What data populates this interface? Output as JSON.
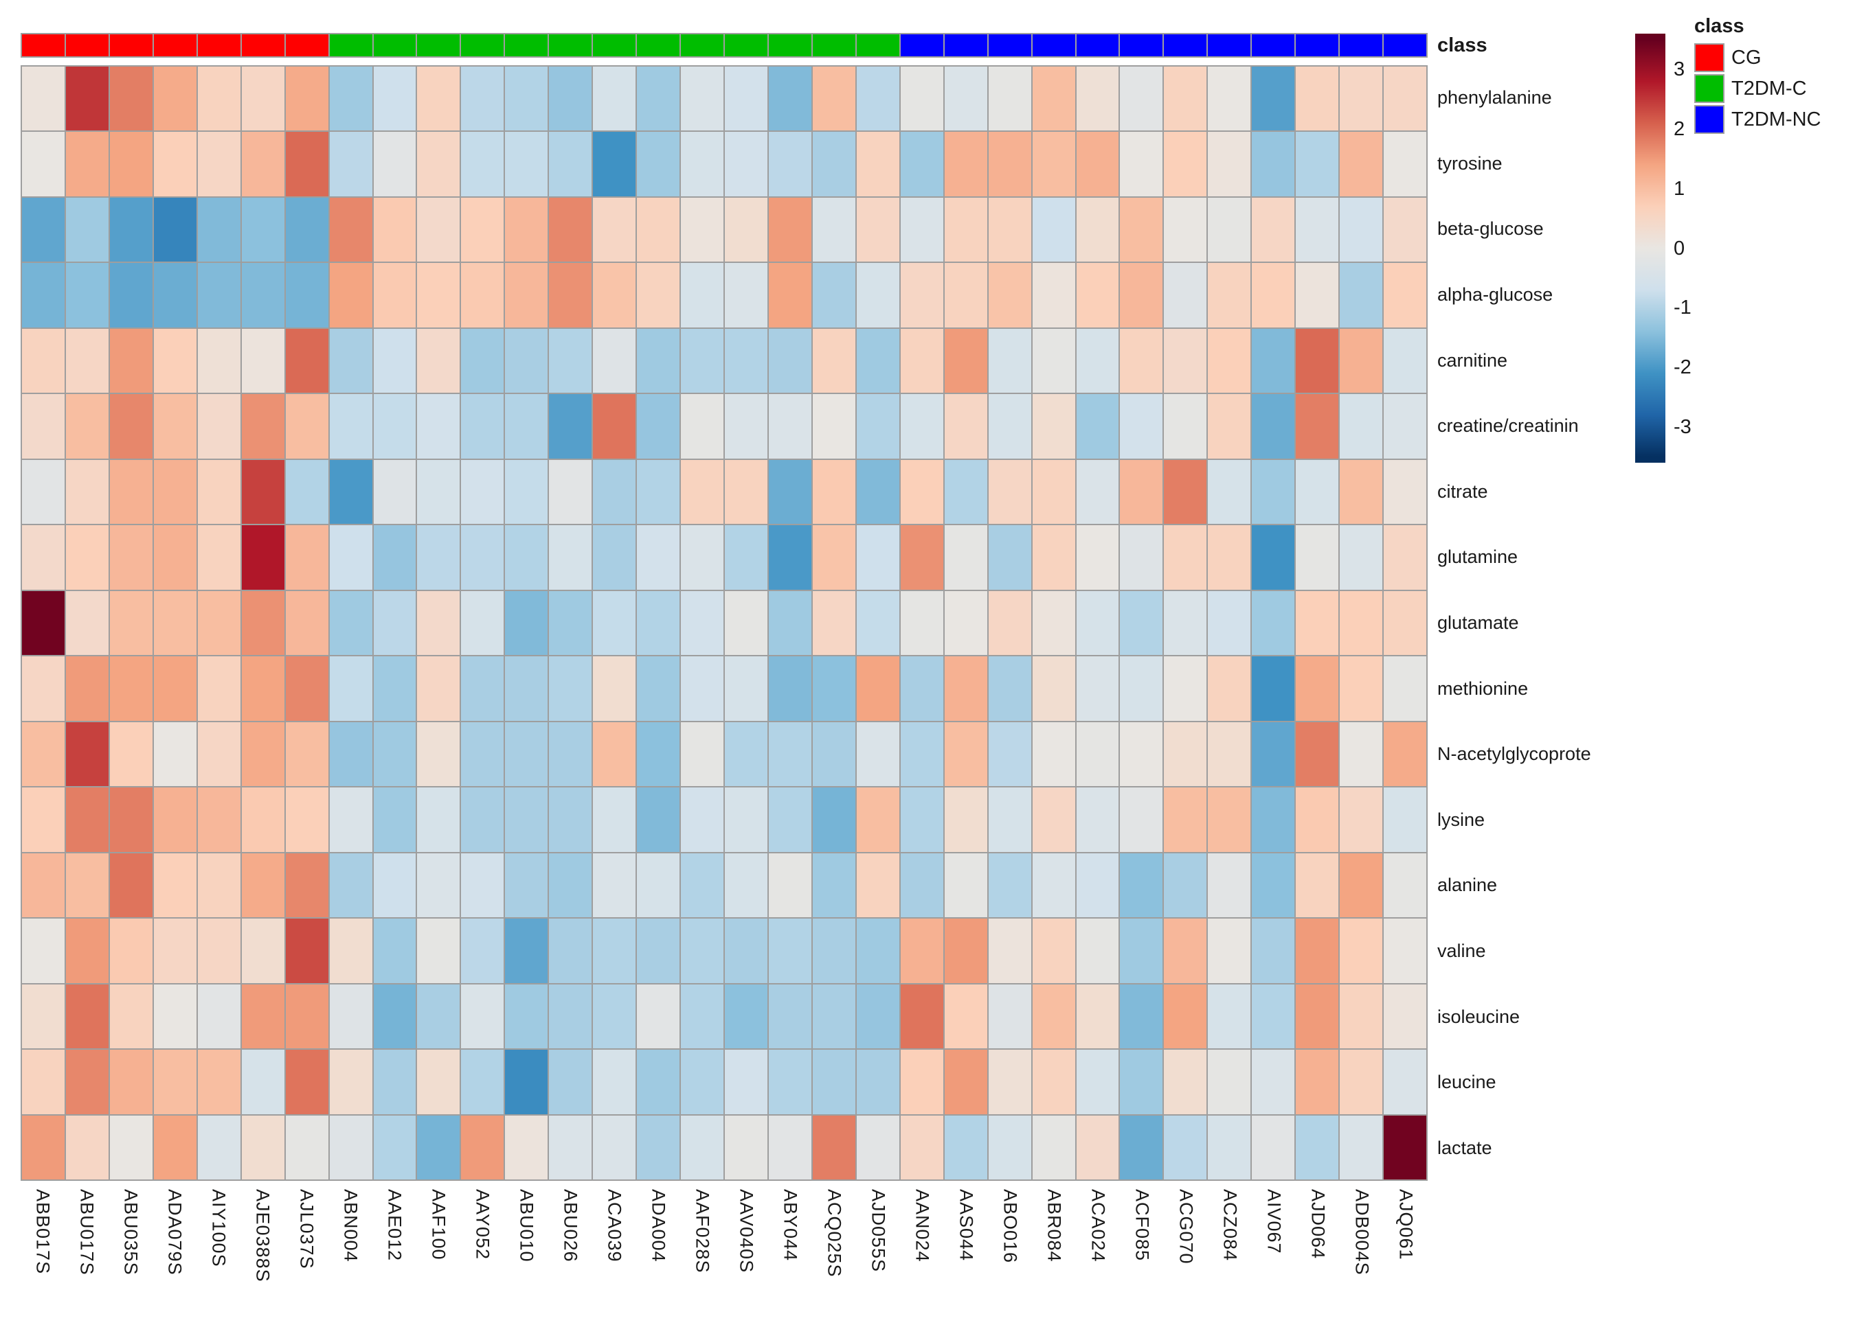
{
  "annotation_label": "class",
  "legend": {
    "title": "class",
    "classes": [
      {
        "name": "CG",
        "color": "#ff0000"
      },
      {
        "name": "T2DM-C",
        "color": "#00bd00"
      },
      {
        "name": "T2DM-NC",
        "color": "#0000ff"
      }
    ],
    "colorbar_ticks": [
      3,
      2,
      1,
      0,
      -1,
      -2,
      -3
    ]
  },
  "chart_data": {
    "type": "heatmap",
    "title": "",
    "value_domain": [
      -3.6,
      3.6
    ],
    "grid": true,
    "legend_position": "right",
    "palette_stops": [
      {
        "v": 3.5,
        "color": "#67001f"
      },
      {
        "v": 2.8,
        "color": "#b01729"
      },
      {
        "v": 2.1,
        "color": "#d6604d"
      },
      {
        "v": 1.4,
        "color": "#f4a582"
      },
      {
        "v": 0.7,
        "color": "#fbd0b9"
      },
      {
        "v": 0.0,
        "color": "#e9e6e2"
      },
      {
        "v": -0.7,
        "color": "#cfe0ec"
      },
      {
        "v": -1.4,
        "color": "#8cc1dd"
      },
      {
        "v": -2.1,
        "color": "#3f92c4"
      },
      {
        "v": -2.8,
        "color": "#2065a8"
      },
      {
        "v": -3.5,
        "color": "#053061"
      }
    ],
    "columns": [
      "ABB017S",
      "ABU017S",
      "ABU035S",
      "ADA079S",
      "AIY100S",
      "AJE0388S",
      "AJL037S",
      "ABN004",
      "AAE012",
      "AAF100",
      "AAY052",
      "ABU010",
      "ABU026",
      "ACA039",
      "ADA004",
      "AAF028S",
      "AAV040S",
      "ABY044",
      "ACQ025S",
      "AJD055S",
      "AAN024",
      "AAS044",
      "ABO016",
      "ABR084",
      "ACA024",
      "ACF085",
      "ACG070",
      "ACZ084",
      "AIV067",
      "AJD064",
      "ADB004S",
      "AJQ061"
    ],
    "column_classes": [
      "CG",
      "CG",
      "CG",
      "CG",
      "CG",
      "CG",
      "CG",
      "T2DM-C",
      "T2DM-C",
      "T2DM-C",
      "T2DM-C",
      "T2DM-C",
      "T2DM-C",
      "T2DM-C",
      "T2DM-C",
      "T2DM-C",
      "T2DM-C",
      "T2DM-C",
      "T2DM-C",
      "T2DM-C",
      "T2DM-NC",
      "T2DM-NC",
      "T2DM-NC",
      "T2DM-NC",
      "T2DM-NC",
      "T2DM-NC",
      "T2DM-NC",
      "T2DM-NC",
      "T2DM-NC",
      "T2DM-NC",
      "T2DM-NC",
      "T2DM-NC"
    ],
    "rows": [
      "phenylalanine",
      "tyrosine",
      "beta-glucose",
      "alpha-glucose",
      "carnitine",
      "creatine/creatinin",
      "citrate",
      "glutamine",
      "glutamate",
      "methionine",
      "N-acetylglycoprote",
      "lysine",
      "alanine",
      "valine",
      "isoleucine",
      "leucine",
      "lactate"
    ],
    "values": [
      [
        0.1,
        2.5,
        1.8,
        1.3,
        0.6,
        0.5,
        1.3,
        -1.2,
        -0.7,
        0.6,
        -0.9,
        -1.0,
        -1.3,
        -0.5,
        -1.2,
        -0.4,
        -0.6,
        -1.5,
        1.0,
        -0.9,
        -0.1,
        -0.4,
        -0.1,
        1.0,
        0.2,
        -0.2,
        0.6,
        0.0,
        -1.9,
        0.6,
        0.5,
        0.5
      ],
      [
        0.0,
        1.3,
        1.4,
        0.7,
        0.5,
        1.1,
        2.0,
        -0.9,
        -0.2,
        0.5,
        -0.8,
        -0.8,
        -1.0,
        -2.1,
        -1.2,
        -0.5,
        -0.6,
        -0.9,
        -1.1,
        0.6,
        -1.2,
        1.2,
        1.2,
        1.0,
        1.2,
        0.0,
        0.7,
        0.1,
        -1.3,
        -1.0,
        1.1,
        0.0
      ],
      [
        -1.8,
        -1.2,
        -1.9,
        -2.3,
        -1.5,
        -1.4,
        -1.7,
        1.7,
        0.8,
        0.4,
        0.7,
        1.1,
        1.7,
        0.5,
        0.6,
        0.1,
        0.3,
        1.5,
        -0.4,
        0.5,
        -0.4,
        0.6,
        0.6,
        -0.7,
        0.3,
        1.0,
        0.0,
        -0.1,
        0.5,
        -0.4,
        -0.6,
        0.4
      ],
      [
        -1.6,
        -1.4,
        -1.8,
        -1.7,
        -1.5,
        -1.5,
        -1.6,
        1.4,
        0.8,
        0.7,
        0.8,
        1.1,
        1.6,
        0.9,
        0.6,
        -0.5,
        -0.4,
        1.4,
        -1.1,
        -0.5,
        0.5,
        0.6,
        0.9,
        0.1,
        0.7,
        1.1,
        -0.3,
        0.6,
        0.7,
        0.1,
        -1.1,
        0.7
      ],
      [
        0.6,
        0.5,
        1.5,
        0.7,
        0.2,
        0.1,
        2.0,
        -1.1,
        -0.7,
        0.4,
        -1.2,
        -1.1,
        -1.0,
        -0.3,
        -1.2,
        -1.0,
        -1.0,
        -1.1,
        0.6,
        -1.2,
        0.6,
        1.5,
        -0.5,
        -0.1,
        -0.5,
        0.6,
        0.4,
        0.7,
        -1.5,
        2.0,
        1.2,
        -0.5
      ],
      [
        0.4,
        1.0,
        1.7,
        1.0,
        0.4,
        1.6,
        1.0,
        -0.8,
        -0.8,
        -0.6,
        -1.0,
        -1.0,
        -1.9,
        1.9,
        -1.3,
        -0.1,
        -0.4,
        -0.4,
        0.0,
        -1.0,
        -0.5,
        0.5,
        -0.5,
        0.3,
        -1.2,
        -0.6,
        -0.1,
        0.6,
        -1.7,
        1.8,
        -0.5,
        -0.4
      ],
      [
        -0.2,
        0.5,
        1.2,
        1.2,
        0.6,
        2.4,
        -1.0,
        -2.0,
        -0.3,
        -0.5,
        -0.6,
        -0.8,
        -0.2,
        -1.1,
        -1.0,
        0.6,
        0.6,
        -1.7,
        0.8,
        -1.5,
        0.7,
        -1.0,
        0.5,
        0.6,
        -0.4,
        1.1,
        1.8,
        -0.5,
        -1.2,
        -0.5,
        1.0,
        0.1
      ],
      [
        0.4,
        0.7,
        1.1,
        1.2,
        0.6,
        2.8,
        1.1,
        -0.7,
        -1.3,
        -0.9,
        -0.9,
        -1.0,
        -0.5,
        -1.1,
        -0.6,
        -0.4,
        -1.0,
        -2.0,
        0.9,
        -0.7,
        1.6,
        -0.1,
        -1.1,
        0.6,
        0.0,
        -0.3,
        0.6,
        0.6,
        -2.1,
        -0.1,
        -0.4,
        0.5
      ],
      [
        3.4,
        0.4,
        1.0,
        1.0,
        1.0,
        1.6,
        1.1,
        -1.2,
        -0.9,
        0.4,
        -0.5,
        -1.5,
        -1.2,
        -0.8,
        -1.0,
        -0.6,
        -0.1,
        -1.2,
        0.5,
        -0.8,
        -0.1,
        0.0,
        0.5,
        0.1,
        -0.5,
        -1.0,
        -0.4,
        -0.6,
        -1.2,
        0.7,
        0.7,
        0.6
      ],
      [
        0.5,
        1.5,
        1.4,
        1.4,
        0.6,
        1.4,
        1.7,
        -0.8,
        -1.2,
        0.5,
        -1.1,
        -1.1,
        -1.0,
        0.3,
        -1.2,
        -0.6,
        -0.5,
        -1.5,
        -1.4,
        1.4,
        -1.1,
        1.2,
        -1.1,
        0.3,
        -0.4,
        -0.5,
        0.0,
        0.6,
        -2.1,
        1.3,
        0.7,
        -0.1
      ],
      [
        1.0,
        2.4,
        0.7,
        0.0,
        0.5,
        1.3,
        1.0,
        -1.3,
        -1.2,
        0.2,
        -1.1,
        -1.1,
        -1.1,
        1.0,
        -1.4,
        -0.1,
        -1.0,
        -1.0,
        -1.1,
        -0.4,
        -1.0,
        1.0,
        -0.9,
        0.0,
        -0.1,
        0.0,
        0.3,
        0.3,
        -1.8,
        1.8,
        0.0,
        1.3
      ],
      [
        0.7,
        1.8,
        1.8,
        1.2,
        1.1,
        0.8,
        0.7,
        -0.4,
        -1.2,
        -0.5,
        -1.1,
        -1.1,
        -1.1,
        -0.5,
        -1.5,
        -0.6,
        -0.5,
        -1.0,
        -1.6,
        1.0,
        -1.0,
        0.3,
        -0.5,
        0.5,
        -0.4,
        -0.2,
        1.0,
        1.0,
        -1.5,
        0.8,
        0.5,
        -0.5
      ],
      [
        1.1,
        1.0,
        1.9,
        0.7,
        0.6,
        1.3,
        1.7,
        -1.1,
        -0.7,
        -0.4,
        -0.6,
        -1.1,
        -1.2,
        -0.4,
        -0.5,
        -1.0,
        -0.5,
        -0.1,
        -1.2,
        0.6,
        -1.1,
        -0.1,
        -1.0,
        -0.4,
        -0.6,
        -1.4,
        -1.1,
        -0.2,
        -1.4,
        0.6,
        1.4,
        -0.1
      ],
      [
        0.0,
        1.5,
        0.8,
        0.5,
        0.5,
        0.3,
        2.3,
        0.3,
        -1.2,
        -0.1,
        -0.9,
        -1.8,
        -1.1,
        -1.0,
        -1.1,
        -1.0,
        -1.1,
        -1.0,
        -1.1,
        -1.2,
        1.2,
        1.5,
        0.1,
        0.6,
        -0.1,
        -1.2,
        1.1,
        0.0,
        -1.1,
        1.5,
        0.7,
        0.0
      ],
      [
        0.3,
        1.9,
        0.6,
        0.0,
        -0.2,
        1.5,
        1.5,
        -0.3,
        -1.6,
        -1.1,
        -0.4,
        -1.2,
        -1.1,
        -1.0,
        -0.2,
        -1.0,
        -1.4,
        -1.1,
        -1.1,
        -1.3,
        1.9,
        0.7,
        -0.3,
        1.0,
        0.3,
        -1.5,
        1.4,
        -0.5,
        -1.0,
        1.5,
        0.6,
        0.1
      ],
      [
        0.6,
        1.7,
        1.2,
        1.0,
        1.0,
        -0.5,
        1.9,
        0.3,
        -1.1,
        0.3,
        -1.0,
        -2.2,
        -1.1,
        -0.5,
        -1.2,
        -1.0,
        -0.6,
        -1.0,
        -1.1,
        -1.1,
        0.7,
        1.5,
        0.2,
        0.6,
        -0.5,
        -1.2,
        0.3,
        -0.1,
        -0.4,
        1.2,
        0.6,
        -0.4
      ],
      [
        1.5,
        0.5,
        0.0,
        1.4,
        -0.4,
        0.3,
        -0.1,
        -0.3,
        -1.0,
        -1.6,
        1.5,
        0.1,
        -0.4,
        -0.4,
        -1.1,
        -0.5,
        -0.1,
        -0.2,
        1.8,
        -0.2,
        0.5,
        -1.0,
        -0.5,
        -0.1,
        0.4,
        -1.7,
        -0.9,
        -0.5,
        -0.2,
        -1.0,
        -0.4,
        3.4
      ]
    ]
  }
}
